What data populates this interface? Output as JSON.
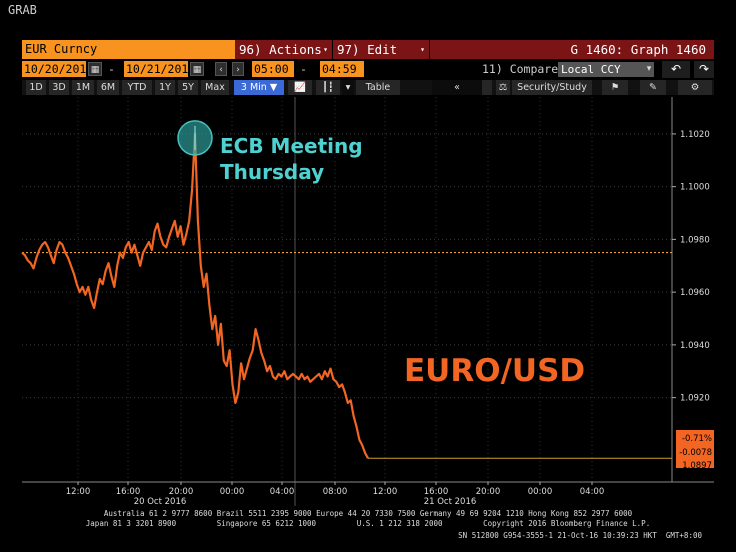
{
  "app": {
    "grab_label": "GRAB"
  },
  "header": {
    "security": "EUR Curncy",
    "actions_label": "96) Actions",
    "edit_label": "97) Edit",
    "graph_title": "G 1460: Graph 1460"
  },
  "range": {
    "start_date": "10/20/201",
    "end_date": "10/21/201",
    "start_time": "05:00",
    "end_time": "04:59",
    "compare_label": "11) Compare",
    "currency": "Local CCY"
  },
  "toolbar": {
    "periods": [
      "1D",
      "3D",
      "1M",
      "6M",
      "YTD",
      "1Y",
      "5Y",
      "Max"
    ],
    "interval": "3 Min ▼",
    "table_label": "Table",
    "security_study_label": "Security/Study"
  },
  "annotations": {
    "ecb_line1": "ECB Meeting",
    "ecb_line2": "Thursday",
    "pair_label": "EURO/USD"
  },
  "chart_data": {
    "type": "line",
    "series": [
      {
        "values": [
          1.0975,
          1.0974,
          1.0972,
          1.0971,
          1.0969,
          1.0973,
          1.0976,
          1.0978,
          1.0979,
          1.0977,
          1.0974,
          1.0971,
          1.0976,
          1.0979,
          1.0978,
          1.0975,
          1.0973,
          1.097,
          1.0967,
          1.0963,
          1.096,
          1.0962,
          1.0959,
          1.0962,
          1.0957,
          1.0954,
          1.096,
          1.0965,
          1.0963,
          1.0968,
          1.0971,
          1.0966,
          1.0962,
          1.097,
          1.0975,
          1.0973,
          1.0977,
          1.0979,
          1.0975,
          1.0978,
          1.0974,
          1.097,
          1.0975,
          1.0977,
          1.0979,
          1.0976,
          1.0983,
          1.0986,
          1.0981,
          1.0978,
          1.0977,
          1.0981,
          1.0984,
          1.0987,
          1.0981,
          1.0985,
          1.0978,
          1.0982,
          1.0987,
          1.0999,
          1.102,
          1.0987,
          1.097,
          1.0962,
          1.0967,
          1.0955,
          1.0946,
          1.0951,
          1.094,
          1.0948,
          1.0934,
          1.0932,
          1.0938,
          1.0925,
          1.0918,
          1.0922,
          1.0933,
          1.0927,
          1.0931,
          1.0935,
          1.0938,
          1.0946,
          1.0942,
          1.0937,
          1.0934,
          1.093,
          1.0932,
          1.0928,
          1.0927,
          1.0929,
          1.0928,
          1.093,
          1.0927,
          1.0928,
          1.0929,
          1.0928,
          1.0927,
          1.0929,
          1.0927,
          1.0928,
          1.0926,
          1.0927,
          1.0928,
          1.0929,
          1.0927,
          1.093,
          1.0928,
          1.0931,
          1.0927,
          1.0926,
          1.0924,
          1.0925,
          1.0922,
          1.0918,
          1.0919,
          1.0913,
          1.0909,
          1.0904,
          1.0902,
          1.0899,
          1.0897
        ]
      }
    ],
    "x_tick_labels": [
      "12:00",
      "16:00",
      "20:00",
      "00:00",
      "04:00",
      "08:00",
      "12:00",
      "16:00",
      "20:00",
      "00:00",
      "04:00"
    ],
    "date_labels": [
      "20 Oct 2016",
      "21 Oct 2016"
    ],
    "y_tick_labels": [
      "1.1020",
      "1.1000",
      "1.0980",
      "1.0960",
      "1.0940",
      "1.0920"
    ],
    "ylim": [
      1.0888,
      1.1034
    ],
    "prev_close": 1.0975,
    "last_change_pct": "-0.71%",
    "last_change": "-0.0078",
    "last_price": "1.0897",
    "grid": true,
    "line_color": "#f26522",
    "ref_line_color": "#e8a33c",
    "peak_marker_color": "#2fa7a5"
  },
  "footer": {
    "line1": "Australia 61 2 9777 8600 Brazil 5511 2395 9000 Europe 44 20 7330 7500 Germany 49 69 9204 1210 Hong Kong 852 2977 6000",
    "line2": "Japan 81 3 3201 8900         Singapore 65 6212 1000         U.S. 1 212 318 2000         Copyright 2016 Bloomberg Finance L.P.",
    "line3": "SN 512800 G954-3555-1 21-Oct-16 10:39:23 HKT  GMT+8:00"
  },
  "colors": {
    "orange": "#f7931e",
    "maroon": "#7b1414",
    "teal": "#4fd1d1",
    "blue": "#3b6ad6"
  }
}
